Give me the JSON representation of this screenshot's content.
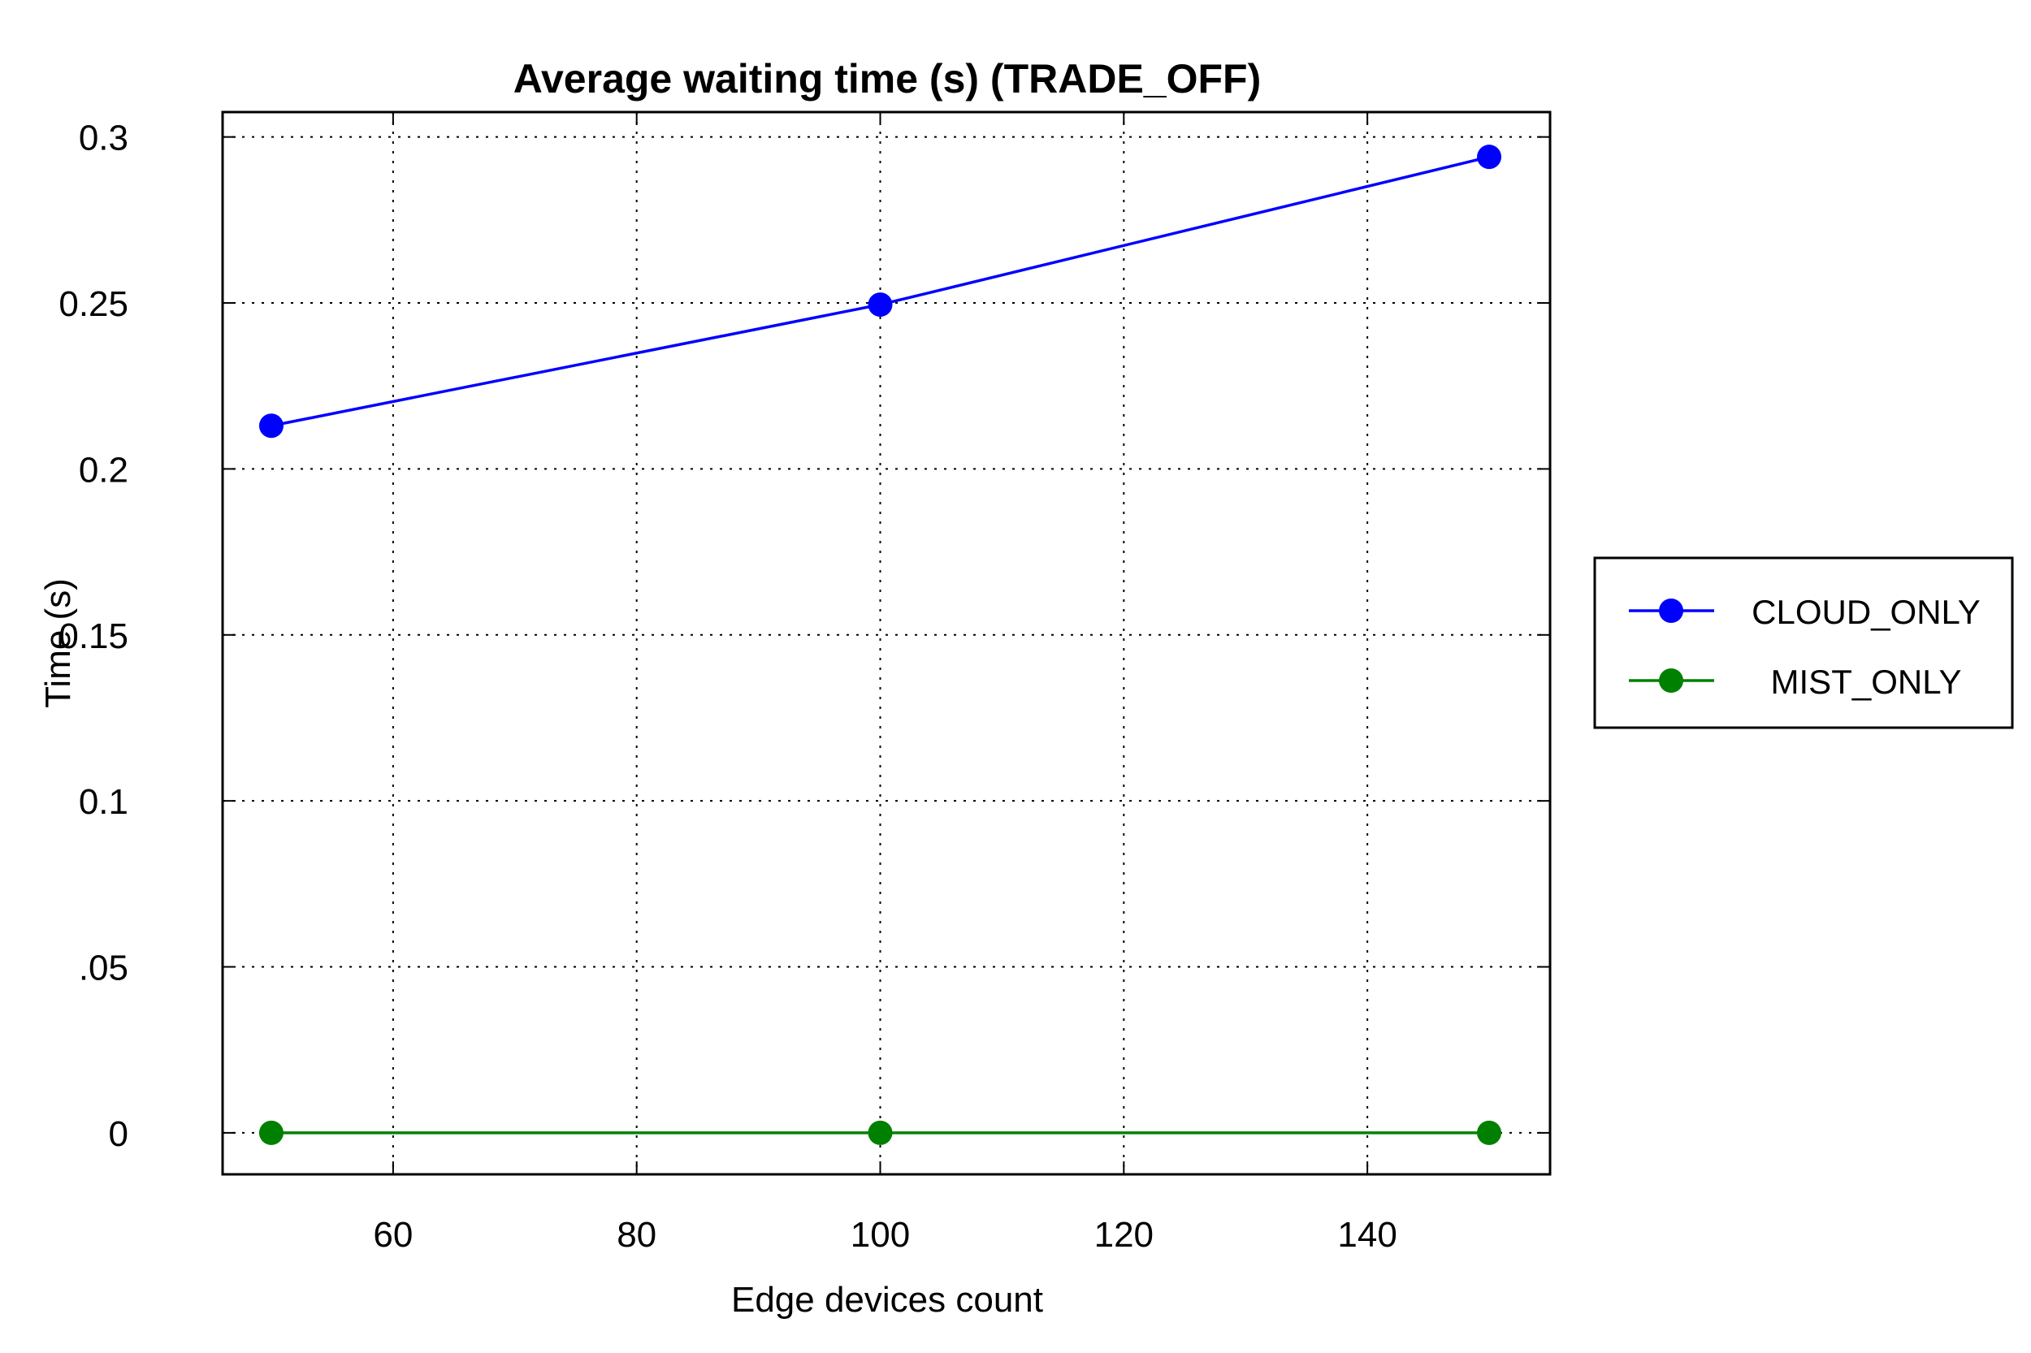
{
  "chart_data": {
    "type": "line",
    "title": "Average waiting time (s) (TRADE_OFF)",
    "xlabel": "Edge devices count",
    "ylabel": "Time (s)",
    "xlim": [
      46,
      155
    ],
    "ylim": [
      -0.0125,
      0.3075
    ],
    "x_ticks": [
      60,
      80,
      100,
      120,
      140
    ],
    "x_tick_labels": [
      "60",
      "80",
      "100",
      "120",
      "140"
    ],
    "y_ticks": [
      0,
      0.05,
      0.1,
      0.15,
      0.2,
      0.25,
      0.3
    ],
    "y_tick_labels": [
      "0",
      ".05",
      "0.1",
      "0.15",
      "0.2",
      "0.25",
      "0.3"
    ],
    "grid": true,
    "legend_position": "right",
    "series": [
      {
        "name": "CLOUD_ONLY",
        "color": "#0000ff",
        "x": [
          50,
          100,
          150
        ],
        "y": [
          0.213,
          0.2495,
          0.294
        ]
      },
      {
        "name": "MIST_ONLY",
        "color": "#008000",
        "x": [
          50,
          100,
          150
        ],
        "y": [
          0.0,
          0.0,
          0.0
        ]
      }
    ]
  }
}
